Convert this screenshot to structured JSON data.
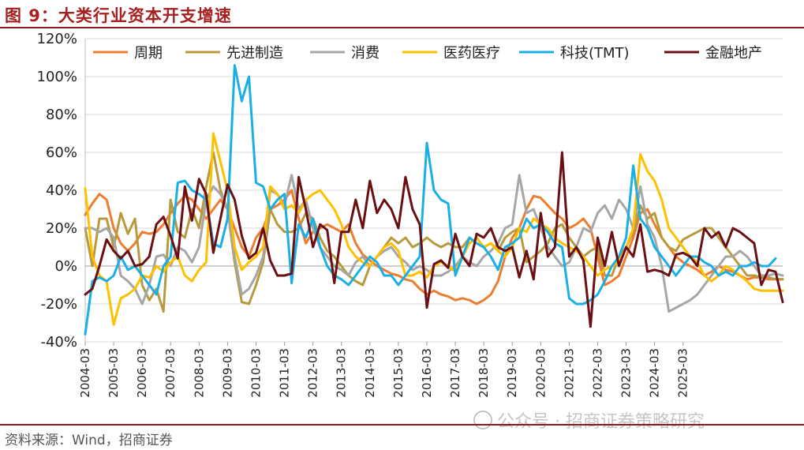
{
  "figure": {
    "title": "图 9：大类行业资本开支增速",
    "source": "资料来源：Wind，招商证券",
    "watermark": "公众号 · 招商证券策略研究"
  },
  "chart_data": {
    "type": "line",
    "ylim": [
      -0.4,
      1.2
    ],
    "yticks": [
      -0.4,
      -0.2,
      0,
      0.2,
      0.4,
      0.6,
      0.8,
      1.0,
      1.2
    ],
    "ytick_labels": [
      "-40%",
      "-20%",
      "0%",
      "20%",
      "40%",
      "60%",
      "80%",
      "100%",
      "120%"
    ],
    "x_start": "2004-03",
    "x_step_months": 3,
    "x_tick_labels": [
      "2004-03",
      "2005-03",
      "2006-03",
      "2007-03",
      "2008-03",
      "2009-03",
      "2010-03",
      "2011-03",
      "2012-03",
      "2013-03",
      "2014-03",
      "2015-03",
      "2016-03",
      "2017-03",
      "2018-03",
      "2019-03",
      "2020-03",
      "2021-03",
      "2022-03",
      "2023-03",
      "2024-03",
      "2025-03"
    ],
    "legend_position": "top",
    "series": [
      {
        "name": "周期",
        "color": "#ed7d31",
        "values": [
          0.27,
          0.33,
          0.38,
          0.35,
          0.2,
          0.12,
          0.08,
          0.12,
          0.18,
          0.17,
          0.18,
          0.22,
          0.28,
          0.33,
          0.37,
          0.35,
          0.3,
          0.25,
          0.3,
          0.35,
          0.3,
          0.2,
          0.1,
          0.05,
          0.15,
          0.2,
          0.3,
          0.32,
          0.35,
          0.4,
          0.25,
          0.12,
          0.18,
          0.2,
          0.22,
          0.2,
          0.18,
          0.22,
          0.12,
          0.06,
          0.03,
          0.0,
          -0.02,
          -0.04,
          -0.05,
          -0.07,
          -0.08,
          -0.12,
          -0.15,
          -0.13,
          -0.15,
          -0.16,
          -0.18,
          -0.17,
          -0.18,
          -0.2,
          -0.18,
          -0.15,
          -0.08,
          0.05,
          0.15,
          0.2,
          0.3,
          0.37,
          0.36,
          0.32,
          0.28,
          0.25,
          0.2,
          0.22,
          0.25,
          0.2,
          0.05,
          -0.1,
          -0.08,
          -0.05,
          0.05,
          0.15,
          0.28,
          0.3,
          0.22,
          0.15,
          0.1,
          0.05,
          0.02,
          0.0,
          -0.02,
          -0.05,
          -0.03,
          0.0,
          -0.02,
          -0.03,
          -0.05,
          -0.07,
          -0.06,
          -0.06,
          -0.07,
          -0.07,
          -0.07
        ]
      },
      {
        "name": "先进制造",
        "color": "#b89a3e",
        "values": [
          0.2,
          0.0,
          0.25,
          0.25,
          0.1,
          0.28,
          0.17,
          0.25,
          -0.1,
          -0.18,
          -0.12,
          -0.24,
          0.35,
          0.18,
          0.15,
          0.3,
          0.2,
          0.42,
          0.6,
          0.4,
          0.3,
          0.02,
          -0.19,
          -0.2,
          -0.1,
          0.02,
          0.3,
          0.22,
          0.18,
          0.18,
          0.2,
          0.28,
          0.25,
          0.15,
          0.08,
          0.05,
          0.0,
          -0.05,
          -0.08,
          -0.1,
          0.0,
          0.05,
          0.1,
          0.15,
          0.12,
          0.15,
          0.1,
          0.12,
          0.15,
          0.12,
          0.1,
          0.12,
          0.1,
          0.1,
          0.15,
          0.12,
          0.1,
          0.12,
          0.08,
          0.15,
          0.18,
          0.2,
          0.02,
          0.05,
          0.08,
          0.12,
          0.2,
          0.22,
          0.15,
          0.1,
          0.05,
          0.08,
          0.1,
          -0.05,
          -0.05,
          0.05,
          0.1,
          0.18,
          0.32,
          0.25,
          0.28,
          0.15,
          0.1,
          0.08,
          0.14,
          0.16,
          0.18,
          0.2,
          0.2,
          0.15,
          0.1,
          0.05,
          0.0,
          -0.05,
          -0.05,
          -0.06,
          -0.06,
          -0.07,
          -0.07
        ]
      },
      {
        "name": "消费",
        "color": "#a6a6a6",
        "values": [
          0.2,
          0.2,
          0.18,
          0.2,
          0.15,
          -0.05,
          -0.08,
          -0.12,
          -0.2,
          -0.1,
          0.05,
          0.06,
          0.0,
          0.1,
          0.08,
          0.02,
          0.1,
          0.35,
          0.42,
          0.38,
          0.3,
          0.05,
          -0.15,
          -0.12,
          -0.05,
          0.05,
          0.4,
          0.38,
          0.32,
          0.48,
          0.3,
          0.35,
          0.2,
          0.1,
          0.05,
          0.0,
          -0.02,
          -0.05,
          0.02,
          0.05,
          0.0,
          0.05,
          0.08,
          0.1,
          0.05,
          0.02,
          -0.02,
          0.0,
          -0.02,
          -0.05,
          -0.05,
          -0.03,
          0.0,
          0.05,
          0.02,
          0.0,
          0.05,
          0.08,
          0.12,
          0.2,
          0.22,
          0.48,
          0.28,
          0.3,
          0.2,
          0.1,
          0.05,
          0.0,
          0.02,
          0.1,
          0.2,
          0.18,
          0.28,
          0.32,
          0.25,
          0.35,
          0.3,
          0.2,
          0.42,
          0.22,
          0.15,
          0.0,
          -0.24,
          -0.22,
          -0.2,
          -0.18,
          -0.15,
          -0.1,
          -0.05,
          0.0,
          0.05,
          0.05,
          0.08,
          0.05,
          0.0,
          -0.05,
          -0.05,
          -0.04,
          -0.05
        ]
      },
      {
        "name": "医药医疗",
        "color": "#ffc000",
        "values": [
          0.41,
          0.05,
          -0.05,
          -0.08,
          -0.31,
          -0.17,
          -0.15,
          -0.12,
          -0.05,
          -0.06,
          0.0,
          -0.03,
          0.02,
          0.05,
          -0.05,
          -0.08,
          -0.02,
          0.02,
          0.7,
          0.55,
          0.4,
          0.1,
          -0.02,
          0.02,
          0.05,
          0.1,
          0.42,
          0.38,
          0.3,
          0.32,
          0.28,
          0.35,
          0.38,
          0.4,
          0.35,
          0.3,
          0.22,
          0.1,
          0.05,
          0.02,
          0.0,
          0.05,
          0.1,
          0.12,
          0.08,
          -0.05,
          -0.05,
          -0.03,
          -0.06,
          0.0,
          0.02,
          0.0,
          -0.03,
          0.05,
          0.12,
          0.15,
          0.1,
          0.12,
          0.08,
          0.05,
          0.1,
          0.2,
          0.18,
          0.25,
          0.22,
          0.2,
          0.15,
          0.12,
          0.1,
          0.08,
          0.05,
          0.0,
          -0.05,
          -0.02,
          0.0,
          0.02,
          0.1,
          0.2,
          0.59,
          0.5,
          0.45,
          0.35,
          0.2,
          0.15,
          0.1,
          0.05,
          0.02,
          -0.05,
          -0.08,
          -0.05,
          0.0,
          -0.02,
          -0.05,
          -0.08,
          -0.12,
          -0.13,
          -0.13,
          -0.13,
          -0.13
        ]
      },
      {
        "name": "科技(TMT)",
        "color": "#1aafe6",
        "values": [
          -0.36,
          -0.08,
          -0.06,
          -0.08,
          -0.05,
          0.05,
          -0.02,
          0.0,
          -0.05,
          -0.1,
          -0.15,
          0.0,
          0.05,
          0.44,
          0.45,
          0.4,
          0.38,
          0.35,
          0.12,
          0.1,
          0.25,
          1.06,
          0.87,
          1.0,
          0.44,
          0.42,
          0.3,
          0.35,
          0.38,
          -0.09,
          0.22,
          0.15,
          0.25,
          0.1,
          0.0,
          -0.05,
          -0.07,
          -0.1,
          -0.05,
          0.0,
          0.05,
          0.02,
          -0.05,
          -0.05,
          -0.1,
          -0.05,
          0.0,
          0.05,
          0.65,
          0.4,
          0.35,
          0.33,
          -0.05,
          0.05,
          0.15,
          0.12,
          0.1,
          0.05,
          -0.02,
          0.1,
          0.12,
          0.15,
          0.25,
          0.2,
          0.22,
          0.18,
          0.12,
          0.1,
          -0.17,
          -0.2,
          -0.2,
          -0.18,
          -0.15,
          -0.08,
          0.0,
          0.05,
          0.15,
          0.53,
          0.25,
          0.2,
          0.1,
          0.05,
          0.0,
          -0.05,
          0.0,
          0.05,
          0.05,
          0.02,
          0.0,
          -0.05,
          -0.03,
          -0.05,
          0.0,
          0.0,
          0.02,
          0.0,
          0.0,
          0.04
        ]
      },
      {
        "name": "金融地产",
        "color": "#6b0f12",
        "values": [
          -0.15,
          -0.12,
          0.0,
          0.14,
          0.08,
          0.04,
          0.08,
          0.0,
          0.01,
          0.05,
          0.22,
          0.26,
          0.16,
          0.04,
          0.42,
          0.24,
          0.46,
          0.38,
          0.07,
          0.25,
          0.43,
          0.35,
          0.16,
          0.04,
          0.07,
          0.2,
          0.03,
          -0.05,
          -0.05,
          -0.04,
          0.47,
          0.3,
          0.1,
          0.22,
          0.19,
          -0.09,
          0.18,
          0.18,
          0.35,
          0.2,
          0.45,
          0.28,
          0.35,
          0.3,
          0.2,
          0.47,
          0.3,
          0.22,
          -0.22,
          0.01,
          0.03,
          -0.01,
          0.17,
          0.05,
          0.0,
          0.17,
          0.15,
          0.2,
          0.1,
          0.08,
          0.1,
          -0.06,
          0.08,
          -0.07,
          0.28,
          0.05,
          0.1,
          0.6,
          0.05,
          0.1,
          0.03,
          -0.32,
          0.15,
          0.0,
          0.18,
          0.0,
          0.1,
          0.05,
          0.22,
          -0.03,
          -0.02,
          -0.03,
          -0.05,
          0.06,
          0.07,
          0.05,
          0.0,
          0.2,
          0.15,
          0.18,
          0.1,
          0.2,
          0.18,
          0.15,
          0.12,
          -0.1,
          -0.02,
          -0.03,
          -0.19
        ]
      }
    ]
  }
}
